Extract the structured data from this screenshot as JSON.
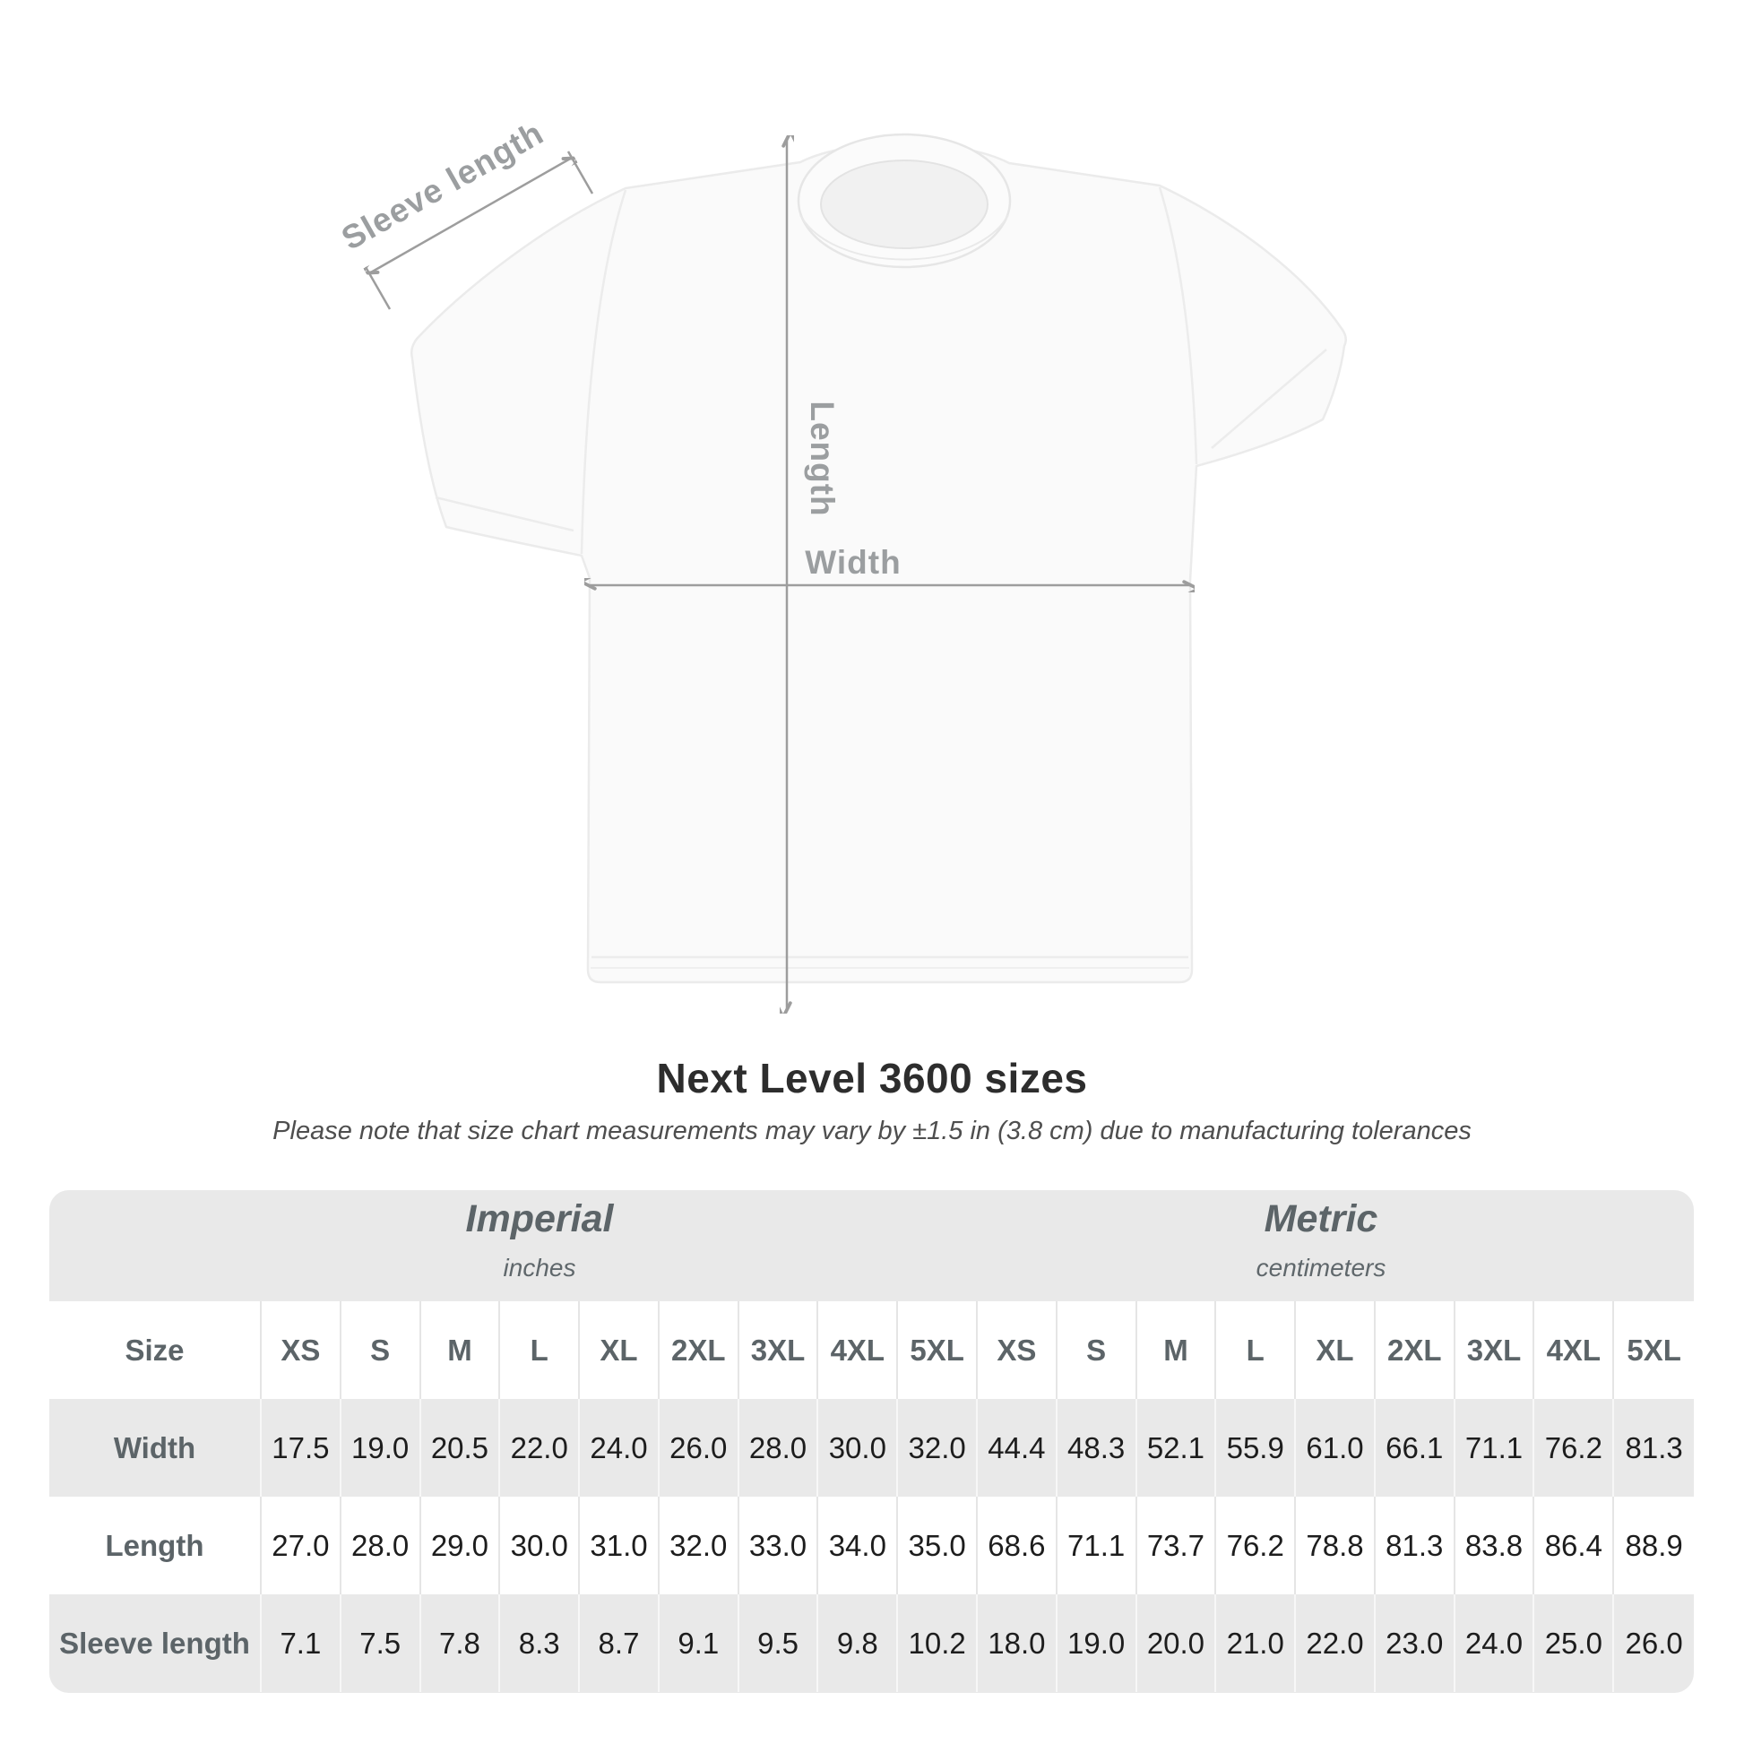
{
  "diagram": {
    "sleeve_length_label": "Sleeve length",
    "length_label": "Length",
    "width_label": "Width",
    "line_color": "#9d9d9d",
    "label_color": "#9b9ea0"
  },
  "heading": {
    "title": "Next Level 3600 sizes",
    "subtitle": "Please note that size chart measurements may vary by ±1.5 in (3.8 cm) due to manufacturing tolerances"
  },
  "table": {
    "group_headers": [
      {
        "title": "Imperial",
        "subtitle": "inches"
      },
      {
        "title": "Metric",
        "subtitle": "centimeters"
      }
    ],
    "size_header_label": "Size",
    "sizes": [
      "XS",
      "S",
      "M",
      "L",
      "XL",
      "2XL",
      "3XL",
      "4XL",
      "5XL"
    ],
    "rows": [
      {
        "label": "Width",
        "imperial": [
          "17.5",
          "19.0",
          "20.5",
          "22.0",
          "24.0",
          "26.0",
          "28.0",
          "30.0",
          "32.0"
        ],
        "metric": [
          "44.4",
          "48.3",
          "52.1",
          "55.9",
          "61.0",
          "66.1",
          "71.1",
          "76.2",
          "81.3"
        ]
      },
      {
        "label": "Length",
        "imperial": [
          "27.0",
          "28.0",
          "29.0",
          "30.0",
          "31.0",
          "32.0",
          "33.0",
          "34.0",
          "35.0"
        ],
        "metric": [
          "68.6",
          "71.1",
          "73.7",
          "76.2",
          "78.8",
          "81.3",
          "83.8",
          "86.4",
          "88.9"
        ]
      },
      {
        "label": "Sleeve length",
        "imperial": [
          "7.1",
          "7.5",
          "7.8",
          "8.3",
          "8.7",
          "9.1",
          "9.5",
          "9.8",
          "10.2"
        ],
        "metric": [
          "18.0",
          "19.0",
          "20.0",
          "21.0",
          "22.0",
          "23.0",
          "24.0",
          "25.0",
          "26.0"
        ]
      }
    ],
    "colors": {
      "container": "#e9e9e9",
      "header_text": "#5c6468",
      "value_text": "#1d1d1d"
    }
  },
  "chart_data": {
    "type": "table",
    "title": "Next Level 3600 sizes",
    "column_groups": [
      "Imperial (inches)",
      "Metric (centimeters)"
    ],
    "categories": [
      "XS",
      "S",
      "M",
      "L",
      "XL",
      "2XL",
      "3XL",
      "4XL",
      "5XL"
    ],
    "series": [
      {
        "name": "Width (in)",
        "values": [
          17.5,
          19.0,
          20.5,
          22.0,
          24.0,
          26.0,
          28.0,
          30.0,
          32.0
        ]
      },
      {
        "name": "Length (in)",
        "values": [
          27.0,
          28.0,
          29.0,
          30.0,
          31.0,
          32.0,
          33.0,
          34.0,
          35.0
        ]
      },
      {
        "name": "Sleeve length (in)",
        "values": [
          7.1,
          7.5,
          7.8,
          8.3,
          8.7,
          9.1,
          9.5,
          9.8,
          10.2
        ]
      },
      {
        "name": "Width (cm)",
        "values": [
          44.4,
          48.3,
          52.1,
          55.9,
          61.0,
          66.1,
          71.1,
          76.2,
          81.3
        ]
      },
      {
        "name": "Length (cm)",
        "values": [
          68.6,
          71.1,
          73.7,
          76.2,
          78.8,
          81.3,
          83.8,
          86.4,
          88.9
        ]
      },
      {
        "name": "Sleeve length (cm)",
        "values": [
          18.0,
          19.0,
          20.0,
          21.0,
          22.0,
          23.0,
          24.0,
          25.0,
          26.0
        ]
      }
    ]
  }
}
